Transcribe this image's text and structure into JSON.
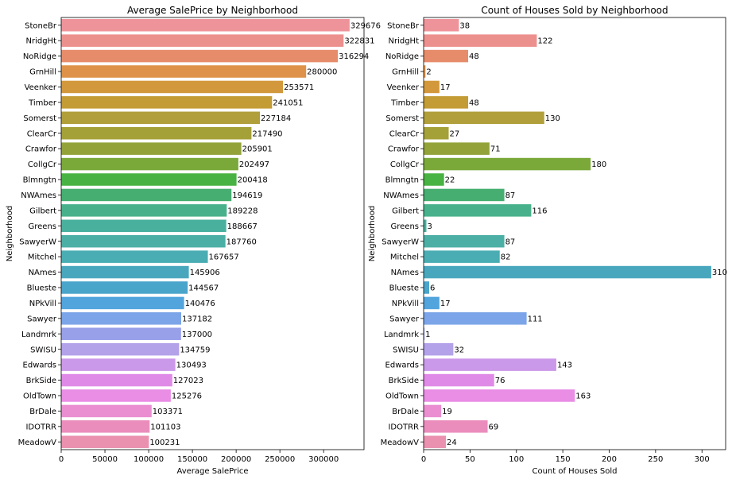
{
  "chart_data": [
    {
      "type": "bar",
      "orientation": "horizontal",
      "title": "Average SalePrice by Neighborhood",
      "xlabel": "Average SalePrice",
      "ylabel": "Neighborhood",
      "xlim": [
        0,
        346160
      ],
      "xticks": [
        0,
        50000,
        100000,
        150000,
        200000,
        250000,
        300000
      ],
      "categories": [
        "StoneBr",
        "NridgHt",
        "NoRidge",
        "GrnHill",
        "Veenker",
        "Timber",
        "Somerst",
        "ClearCr",
        "Crawfor",
        "CollgCr",
        "Blmngtn",
        "NWAmes",
        "Gilbert",
        "Greens",
        "SawyerW",
        "Mitchel",
        "NAmes",
        "Blueste",
        "NPkVill",
        "Sawyer",
        "Landmrk",
        "SWISU",
        "Edwards",
        "BrkSide",
        "OldTown",
        "BrDale",
        "IDOTRR",
        "MeadowV"
      ],
      "values": [
        329676,
        322831,
        316294,
        280000,
        253571,
        241051,
        227184,
        217490,
        205901,
        202497,
        200418,
        194619,
        189228,
        188667,
        187760,
        167657,
        145906,
        144567,
        140476,
        137182,
        137000,
        134759,
        130493,
        127023,
        125276,
        103371,
        101103,
        100231
      ],
      "data_labels": true,
      "grid": false
    },
    {
      "type": "bar",
      "orientation": "horizontal",
      "title": "Count of Houses Sold by Neighborhood",
      "xlabel": "Count of Houses Sold",
      "ylabel": "Neighborhood",
      "xlim": [
        0,
        325.5
      ],
      "xticks": [
        0,
        50,
        100,
        150,
        200,
        250,
        300
      ],
      "categories": [
        "StoneBr",
        "NridgHt",
        "NoRidge",
        "GrnHill",
        "Veenker",
        "Timber",
        "Somerst",
        "ClearCr",
        "Crawfor",
        "CollgCr",
        "Blmngtn",
        "NWAmes",
        "Gilbert",
        "Greens",
        "SawyerW",
        "Mitchel",
        "NAmes",
        "Blueste",
        "NPkVill",
        "Sawyer",
        "Landmrk",
        "SWISU",
        "Edwards",
        "BrkSide",
        "OldTown",
        "BrDale",
        "IDOTRR",
        "MeadowV"
      ],
      "values": [
        38,
        122,
        48,
        2,
        17,
        48,
        130,
        27,
        71,
        180,
        22,
        87,
        116,
        3,
        87,
        82,
        310,
        6,
        17,
        111,
        1,
        32,
        143,
        76,
        163,
        19,
        69,
        24
      ],
      "data_labels": true,
      "grid": false
    }
  ],
  "palette": [
    "#ef939a",
    "#ec908e",
    "#e68c6b",
    "#de9249",
    "#d2983b",
    "#c39c35",
    "#b09f3b",
    "#a5a139",
    "#93a33a",
    "#7aa93a",
    "#48b342",
    "#45ae70",
    "#48b18c",
    "#4ab09e",
    "#4bafa5",
    "#4aadb3",
    "#49a7bd",
    "#4aa5cb",
    "#52a4dd",
    "#7ba5e8",
    "#98a0ea",
    "#b3a1ea",
    "#cb99e9",
    "#e08ae7",
    "#e98de5",
    "#ea8ed1",
    "#ea8dbd",
    "#ea91af"
  ]
}
